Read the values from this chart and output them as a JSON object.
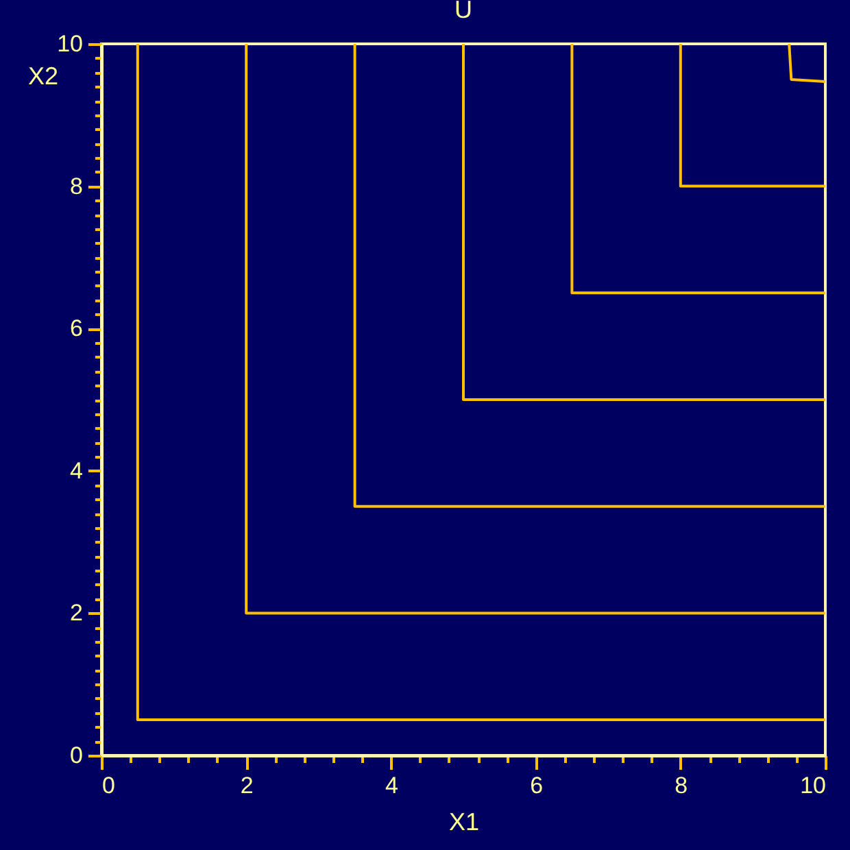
{
  "chart_data": {
    "type": "line",
    "title": "U",
    "xlabel": "X1",
    "ylabel": "X2",
    "xlim": [
      0,
      10
    ],
    "ylim": [
      0,
      10
    ],
    "xticks": [
      0,
      {
        "value": 0.4,
        "label": null
      },
      {
        "value": 0.8,
        "label": null
      },
      {
        "value": 1.2,
        "label": null
      },
      {
        "value": 1.6,
        "label": null
      },
      2,
      {
        "value": 2.4,
        "label": null
      },
      {
        "value": 2.8,
        "label": null
      },
      {
        "value": 3.2,
        "label": null
      },
      {
        "value": 3.6,
        "label": null
      },
      4,
      {
        "value": 4.4,
        "label": null
      },
      {
        "value": 4.8,
        "label": null
      },
      {
        "value": 5.2,
        "label": null
      },
      {
        "value": 5.6,
        "label": null
      },
      6,
      {
        "value": 6.4,
        "label": null
      },
      {
        "value": 6.8,
        "label": null
      },
      {
        "value": 7.2,
        "label": null
      },
      {
        "value": 7.6,
        "label": null
      },
      8,
      {
        "value": 8.4,
        "label": null
      },
      {
        "value": 8.8,
        "label": null
      },
      {
        "value": 9.2,
        "label": null
      },
      {
        "value": 9.6,
        "label": null
      },
      10
    ],
    "yticks": [
      0,
      {
        "value": 0.2,
        "label": null
      },
      {
        "value": 0.4,
        "label": null
      },
      {
        "value": 0.6,
        "label": null
      },
      {
        "value": 0.8,
        "label": null
      },
      {
        "value": 1,
        "label": null
      },
      {
        "value": 1.2,
        "label": null
      },
      {
        "value": 1.4,
        "label": null
      },
      {
        "value": 1.6,
        "label": null
      },
      {
        "value": 1.8,
        "label": null
      },
      2,
      {
        "value": 2.2,
        "label": null
      },
      {
        "value": 2.4,
        "label": null
      },
      {
        "value": 2.6,
        "label": null
      },
      {
        "value": 2.8,
        "label": null
      },
      {
        "value": 3,
        "label": null
      },
      {
        "value": 3.2,
        "label": null
      },
      {
        "value": 3.4,
        "label": null
      },
      {
        "value": 3.6,
        "label": null
      },
      {
        "value": 3.8,
        "label": null
      },
      4,
      {
        "value": 4.2,
        "label": null
      },
      {
        "value": 4.4,
        "label": null
      },
      {
        "value": 4.6,
        "label": null
      },
      {
        "value": 4.8,
        "label": null
      },
      {
        "value": 5,
        "label": null
      },
      {
        "value": 5.2,
        "label": null
      },
      {
        "value": 5.4,
        "label": null
      },
      {
        "value": 5.6,
        "label": null
      },
      {
        "value": 5.8,
        "label": null
      },
      6,
      {
        "value": 6.2,
        "label": null
      },
      {
        "value": 6.4,
        "label": null
      },
      {
        "value": 6.6,
        "label": null
      },
      {
        "value": 6.8,
        "label": null
      },
      {
        "value": 7,
        "label": null
      },
      {
        "value": 7.2,
        "label": null
      },
      {
        "value": 7.4,
        "label": null
      },
      {
        "value": 7.6,
        "label": null
      },
      {
        "value": 7.8,
        "label": null
      },
      8,
      {
        "value": 8.2,
        "label": null
      },
      {
        "value": 8.4,
        "label": null
      },
      {
        "value": 8.6,
        "label": null
      },
      {
        "value": 8.8,
        "label": null
      },
      {
        "value": 9,
        "label": null
      },
      {
        "value": 9.2,
        "label": null
      },
      {
        "value": 9.4,
        "label": null
      },
      {
        "value": 9.6,
        "label": null
      },
      {
        "value": 9.8,
        "label": null
      },
      10
    ],
    "grid": false,
    "legend": false,
    "marker": "none",
    "line_style": "solid",
    "series": [
      {
        "color": "#ffc000",
        "x": [
          0.5,
          0.5,
          10
        ],
        "values": [
          10,
          0.5,
          0.5
        ]
      },
      {
        "color": "#ffc000",
        "x": [
          2,
          2,
          10
        ],
        "values": [
          10,
          2,
          2
        ]
      },
      {
        "color": "#ffc000",
        "x": [
          3.5,
          3.5,
          10
        ],
        "values": [
          10,
          3.5,
          3.5
        ]
      },
      {
        "color": "#ffc000",
        "x": [
          5,
          5,
          10
        ],
        "values": [
          10,
          5,
          5
        ]
      },
      {
        "color": "#ffc000",
        "x": [
          6.5,
          6.5,
          10
        ],
        "values": [
          10,
          6.5,
          6.5
        ]
      },
      {
        "color": "#ffc000",
        "x": [
          8,
          8,
          10
        ],
        "values": [
          10,
          8,
          8
        ]
      },
      {
        "color": "#ffc000",
        "x": [
          9.5,
          9.53,
          10
        ],
        "values": [
          10,
          9.5,
          9.47
        ]
      }
    ]
  }
}
